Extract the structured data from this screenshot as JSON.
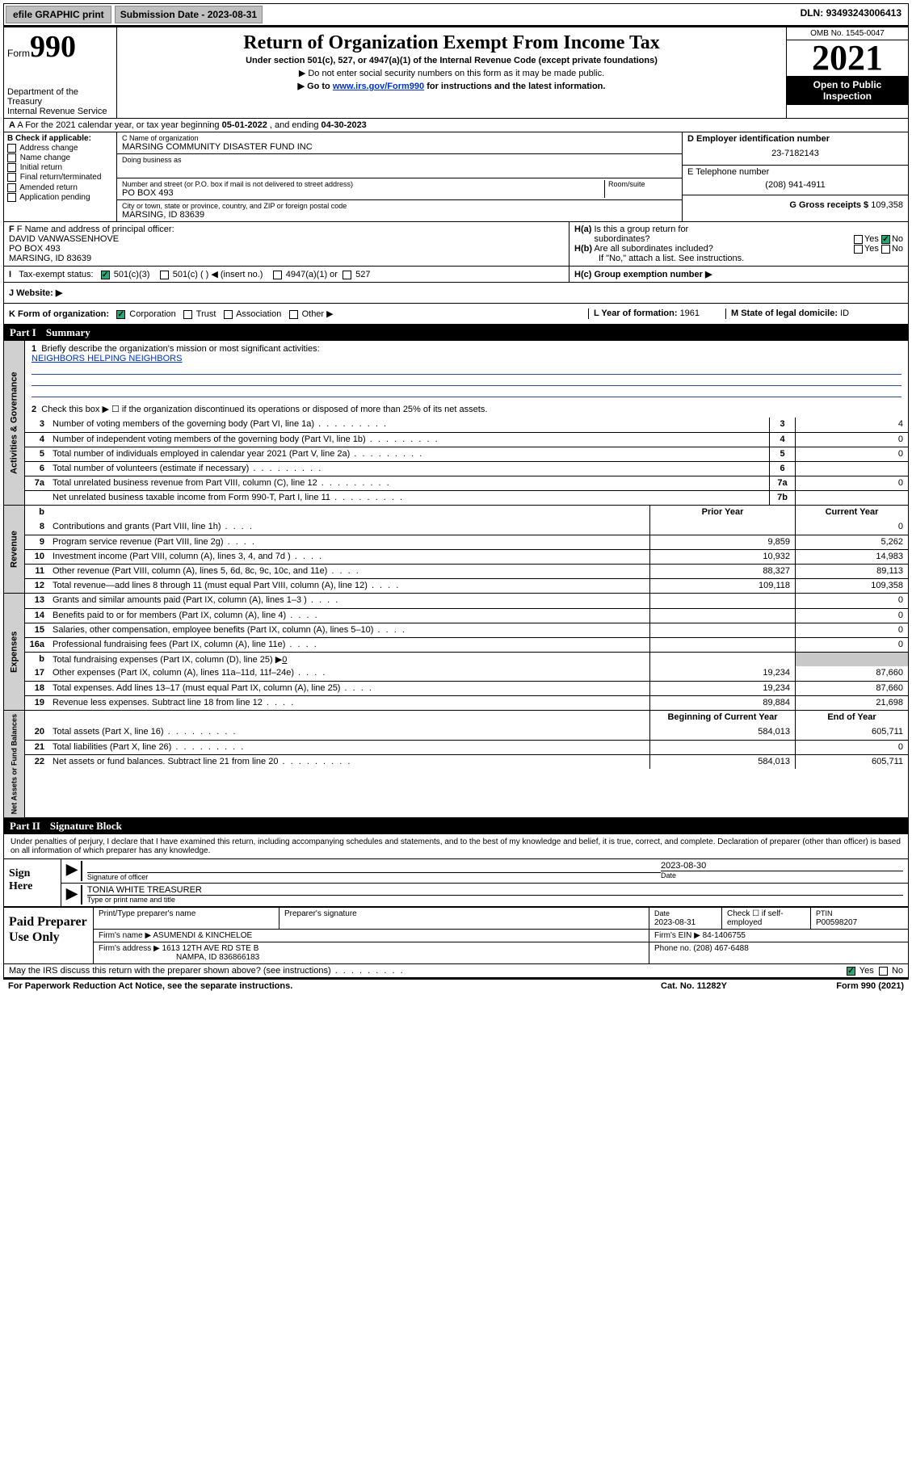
{
  "topbar": {
    "efile": "efile GRAPHIC print",
    "sub_label": "Submission Date - ",
    "sub_date": "2023-08-31",
    "dln_label": "DLN: ",
    "dln": "93493243006413"
  },
  "header": {
    "form_label": "Form",
    "form_num": "990",
    "dept": "Department of the Treasury",
    "irs": "Internal Revenue Service",
    "title": "Return of Organization Exempt From Income Tax",
    "subtitle": "Under section 501(c), 527, or 4947(a)(1) of the Internal Revenue Code (except private foundations)",
    "note1": "▶ Do not enter social security numbers on this form as it may be made public.",
    "note2_pre": "▶ Go to ",
    "note2_link": "www.irs.gov/Form990",
    "note2_post": " for instructions and the latest information.",
    "omb": "OMB No. 1545-0047",
    "year": "2021",
    "open": "Open to Public Inspection"
  },
  "line_a": {
    "text_pre": "A For the 2021 calendar year, or tax year beginning ",
    "begin": "05-01-2022",
    "mid": " , and ending ",
    "end": "04-30-2023"
  },
  "section_b": {
    "label": "B Check if applicable:",
    "opts": [
      "Address change",
      "Name change",
      "Initial return",
      "Final return/terminated",
      "Amended return",
      "Application pending"
    ]
  },
  "section_c": {
    "name_lbl": "C Name of organization",
    "name": "MARSING COMMUNITY DISASTER FUND INC",
    "dba_lbl": "Doing business as",
    "dba": "",
    "street_lbl": "Number and street (or P.O. box if mail is not delivered to street address)",
    "room_lbl": "Room/suite",
    "street": "PO BOX 493",
    "city_lbl": "City or town, state or province, country, and ZIP or foreign postal code",
    "city": "MARSING, ID  83639"
  },
  "section_d": {
    "ein_lbl": "D Employer identification number",
    "ein": "23-7182143",
    "phone_lbl": "E Telephone number",
    "phone": "(208) 941-4911",
    "gross_lbl": "G Gross receipts $ ",
    "gross": "109,358"
  },
  "section_f": {
    "lbl": "F Name and address of principal officer:",
    "name": "DAVID VANWASSENHOVE",
    "street": "PO BOX 493",
    "city": "MARSING, ID  83639"
  },
  "section_h": {
    "ha": "H(a)  Is this a group return for subordinates?",
    "hb": "H(b)  Are all subordinates included?",
    "hb_note": "If \"No,\" attach a list. See instructions.",
    "hc": "H(c)  Group exemption number ▶",
    "yes": "Yes",
    "no": "No"
  },
  "section_i": {
    "lbl": "I    Tax-exempt status:",
    "o1": "501(c)(3)",
    "o2": "501(c) (   ) ◀ (insert no.)",
    "o3": "4947(a)(1) or",
    "o4": "527"
  },
  "section_j": {
    "lbl": "J    Website: ▶"
  },
  "section_k": {
    "lbl": "K Form of organization:",
    "o1": "Corporation",
    "o2": "Trust",
    "o3": "Association",
    "o4": "Other ▶",
    "l_lbl": "L Year of formation: ",
    "l_val": "1961",
    "m_lbl": "M State of legal domicile: ",
    "m_val": "ID"
  },
  "part1": {
    "label": "Part I",
    "title": "Summary"
  },
  "summary": {
    "side_labels": [
      "Activities & Governance",
      "Revenue",
      "Expenses",
      "Net Assets or Fund Balances"
    ],
    "q1": "Briefly describe the organization's mission or most significant activities:",
    "mission": "NEIGHBORS HELPING NEIGHBORS",
    "q2": "Check this box ▶ ☐  if the organization discontinued its operations or disposed of more than 25% of its net assets.",
    "lines_gov": [
      {
        "n": "3",
        "t": "Number of voting members of the governing body (Part VI, line 1a)",
        "c": "3",
        "v": "4"
      },
      {
        "n": "4",
        "t": "Number of independent voting members of the governing body (Part VI, line 1b)",
        "c": "4",
        "v": "0"
      },
      {
        "n": "5",
        "t": "Total number of individuals employed in calendar year 2021 (Part V, line 2a)",
        "c": "5",
        "v": "0"
      },
      {
        "n": "6",
        "t": "Total number of volunteers (estimate if necessary)",
        "c": "6",
        "v": ""
      },
      {
        "n": "7a",
        "t": "Total unrelated business revenue from Part VIII, column (C), line 12",
        "c": "7a",
        "v": "0"
      },
      {
        "n": "",
        "t": "Net unrelated business taxable income from Form 990-T, Part I, line 11",
        "c": "7b",
        "v": ""
      }
    ],
    "prior_hdr": "Prior Year",
    "curr_hdr": "Current Year",
    "lines_rev": [
      {
        "n": "8",
        "t": "Contributions and grants (Part VIII, line 1h)",
        "p": "",
        "v": "0"
      },
      {
        "n": "9",
        "t": "Program service revenue (Part VIII, line 2g)",
        "p": "9,859",
        "v": "5,262"
      },
      {
        "n": "10",
        "t": "Investment income (Part VIII, column (A), lines 3, 4, and 7d )",
        "p": "10,932",
        "v": "14,983"
      },
      {
        "n": "11",
        "t": "Other revenue (Part VIII, column (A), lines 5, 6d, 8c, 9c, 10c, and 11e)",
        "p": "88,327",
        "v": "89,113"
      },
      {
        "n": "12",
        "t": "Total revenue—add lines 8 through 11 (must equal Part VIII, column (A), line 12)",
        "p": "109,118",
        "v": "109,358"
      }
    ],
    "lines_exp": [
      {
        "n": "13",
        "t": "Grants and similar amounts paid (Part IX, column (A), lines 1–3 )",
        "p": "",
        "v": "0"
      },
      {
        "n": "14",
        "t": "Benefits paid to or for members (Part IX, column (A), line 4)",
        "p": "",
        "v": "0"
      },
      {
        "n": "15",
        "t": "Salaries, other compensation, employee benefits (Part IX, column (A), lines 5–10)",
        "p": "",
        "v": "0"
      },
      {
        "n": "16a",
        "t": "Professional fundraising fees (Part IX, column (A), line 11e)",
        "p": "",
        "v": "0"
      }
    ],
    "line_b": {
      "n": "b",
      "t": "Total fundraising expenses (Part IX, column (D), line 25) ▶",
      "u": "0"
    },
    "lines_exp2": [
      {
        "n": "17",
        "t": "Other expenses (Part IX, column (A), lines 11a–11d, 11f–24e)",
        "p": "19,234",
        "v": "87,660"
      },
      {
        "n": "18",
        "t": "Total expenses. Add lines 13–17 (must equal Part IX, column (A), line 25)",
        "p": "19,234",
        "v": "87,660"
      },
      {
        "n": "19",
        "t": "Revenue less expenses. Subtract line 18 from line 12",
        "p": "89,884",
        "v": "21,698"
      }
    ],
    "net_hdr_p": "Beginning of Current Year",
    "net_hdr_c": "End of Year",
    "lines_net": [
      {
        "n": "20",
        "t": "Total assets (Part X, line 16)",
        "p": "584,013",
        "v": "605,711"
      },
      {
        "n": "21",
        "t": "Total liabilities (Part X, line 26)",
        "p": "",
        "v": "0"
      },
      {
        "n": "22",
        "t": "Net assets or fund balances. Subtract line 21 from line 20",
        "p": "584,013",
        "v": "605,711"
      }
    ]
  },
  "part2": {
    "label": "Part II",
    "title": "Signature Block"
  },
  "sig": {
    "declaration": "Under penalties of perjury, I declare that I have examined this return, including accompanying schedules and statements, and to the best of my knowledge and belief, it is true, correct, and complete. Declaration of preparer (other than officer) is based on all information of which preparer has any knowledge.",
    "sign_here": "Sign Here",
    "sig_officer_lbl": "Signature of officer",
    "date_lbl": "Date",
    "sig_date": "2023-08-30",
    "name_title": "TONIA WHITE  TREASURER",
    "name_title_lbl": "Type or print name and title"
  },
  "paid": {
    "label": "Paid Preparer Use Only",
    "h1": "Print/Type preparer's name",
    "h2": "Preparer's signature",
    "h3_lbl": "Date",
    "h3_val": "2023-08-31",
    "h4_lbl": "Check ☐ if self-employed",
    "h5_lbl": "PTIN",
    "h5_val": "P00598207",
    "firm_name_lbl": "Firm's name    ▶ ",
    "firm_name": "ASUMENDI & KINCHELOE",
    "firm_ein_lbl": "Firm's EIN ▶ ",
    "firm_ein": "84-1406755",
    "firm_addr_lbl": "Firm's address ▶ ",
    "firm_addr1": "1613 12TH AVE RD STE B",
    "firm_addr2": "NAMPA, ID  836866183",
    "phone_lbl": "Phone no. ",
    "phone": "(208) 467-6488"
  },
  "footer": {
    "discuss": "May the IRS discuss this return with the preparer shown above? (see instructions)",
    "yes": "Yes",
    "no": "No",
    "paperwork": "For Paperwork Reduction Act Notice, see the separate instructions.",
    "cat": "Cat. No. 11282Y",
    "form": "Form 990 (2021)"
  }
}
